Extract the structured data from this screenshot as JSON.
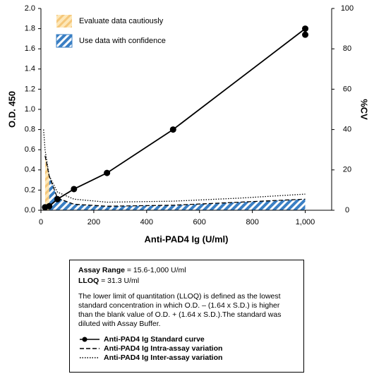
{
  "chart_data": {
    "type": "line",
    "y_label": "O.D. 450",
    "y2_label": "%CV",
    "x_label": "Anti-PAD4 Ig (U/ml)",
    "xlim": [
      0,
      1100
    ],
    "xticks": [
      0,
      200,
      400,
      600,
      800,
      {
        "value": 1000,
        "label": "1,000"
      }
    ],
    "ylim": [
      0,
      2
    ],
    "yticks": [
      {
        "value": 0,
        "label": "0.0"
      },
      0.2,
      0.4,
      0.6,
      0.8,
      {
        "value": 1,
        "label": "1.0"
      },
      1.2,
      1.4,
      1.6,
      1.8,
      {
        "value": 2,
        "label": "2.0"
      }
    ],
    "y2lim": [
      0,
      100
    ],
    "y2ticks": [
      0,
      20,
      40,
      60,
      80,
      100
    ],
    "regions": [
      {
        "name": "Evaluate data cautiously",
        "color": "#f5c77a",
        "x": [
          15.6,
          31.3
        ]
      },
      {
        "name": "Use data with confidence",
        "color": "#3a7fc4",
        "x": [
          31.3,
          1000
        ]
      }
    ],
    "series": [
      {
        "name": "Anti-PAD4 Ig Standard curve",
        "color": "#000000",
        "style": "solid",
        "markers": true,
        "x": [
          15.6,
          31.3,
          62.5,
          125,
          250,
          500,
          1000,
          1000
        ],
        "values": [
          0.03,
          0.04,
          0.11,
          0.21,
          0.37,
          0.8,
          1.8,
          1.74
        ]
      },
      {
        "name": "Anti-PAD4 Ig Intra-assay variation",
        "color": "#000000",
        "style": "dashed",
        "axis": "y2",
        "area": true,
        "x": [
          15.6,
          31.3,
          62.5,
          125,
          250,
          500,
          750,
          1000
        ],
        "values": [
          27,
          17,
          6,
          3,
          2,
          2.5,
          4,
          5.5
        ]
      },
      {
        "name": "Anti-PAD4 Ig Inter-assay variation",
        "color": "#000000",
        "style": "dotted",
        "axis": "y2",
        "x": [
          10,
          15.6,
          31.3,
          62.5,
          125,
          250,
          500,
          750,
          1000
        ],
        "values": [
          40,
          30,
          17,
          9,
          5.5,
          4,
          4.5,
          6,
          8
        ]
      }
    ]
  },
  "info_box": {
    "assay_range": {
      "label": "Assay Range",
      "value": "= 15.6-1,000 U/ml"
    },
    "lloq": {
      "label": "LLOQ",
      "value": "= 31.3 U/ml"
    },
    "paragraph": "The lower limit of quantitation (LLOQ) is defined as the lowest standard concentration in which O.D. – (1.64 x S.D.) is higher than the blank value of O.D. + (1.64 x S.D.).The standard was diluted with Assay Buffer."
  }
}
